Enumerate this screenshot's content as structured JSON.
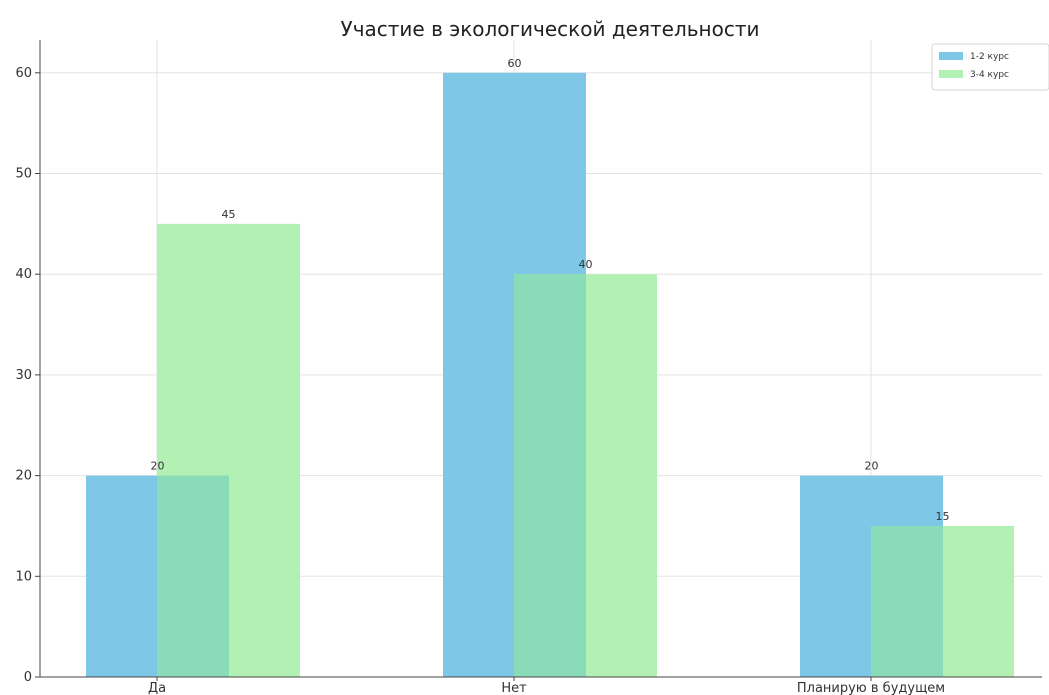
{
  "chart_data": {
    "type": "bar",
    "title": "Участие в экологической деятельности",
    "xlabel": "",
    "ylabel": "",
    "categories": [
      "Да",
      "Нет",
      "Планирую в будущем"
    ],
    "series": [
      {
        "name": "1-2 курс",
        "values": [
          20,
          60,
          20
        ],
        "color": "#7ec7e6"
      },
      {
        "name": "3-4 курс",
        "values": [
          45,
          40,
          15
        ],
        "color": "#b3f0b3"
      }
    ],
    "overlap_color": "#8adcb8",
    "ylim": [
      0,
      63
    ],
    "yticks": [
      0,
      10,
      20,
      30,
      40,
      50,
      60
    ],
    "grid": true,
    "legend_position": "top-right"
  }
}
